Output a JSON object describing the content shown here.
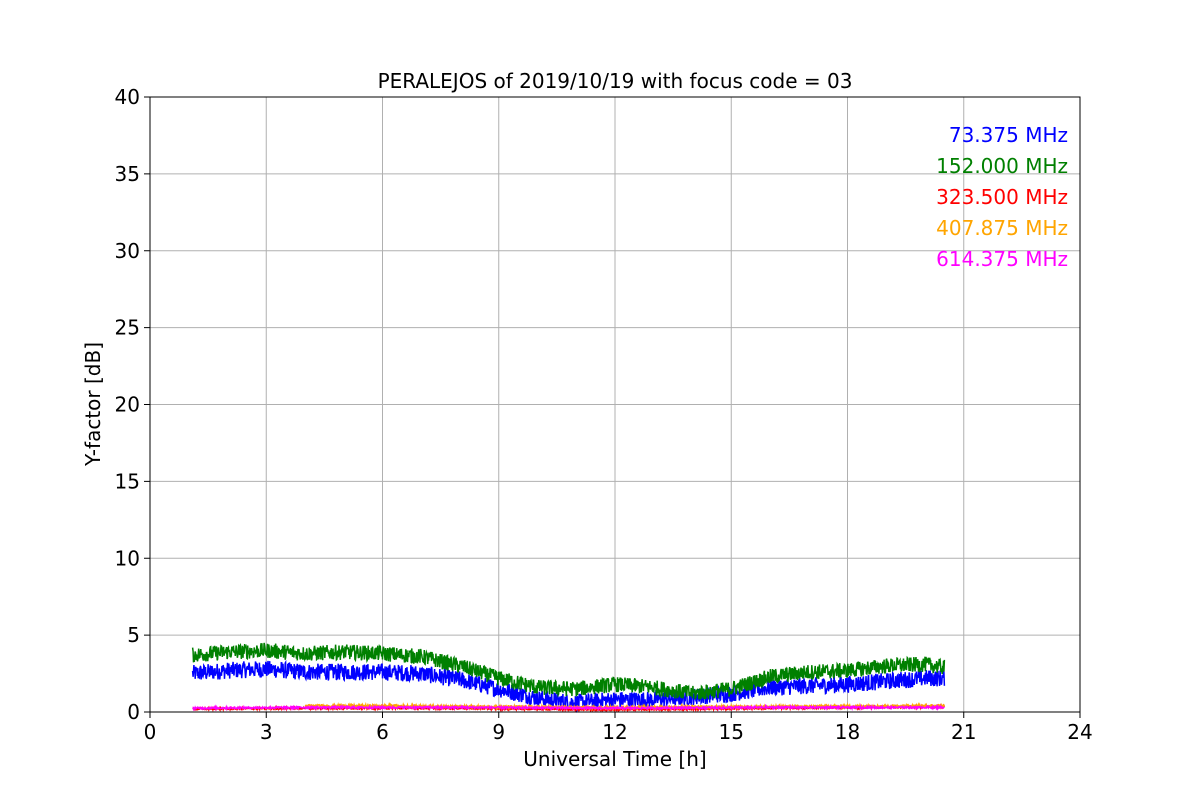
{
  "chart_data": {
    "type": "line",
    "title": "PERALEJOS of 2019/10/19 with focus code = 03",
    "xlabel": "Universal Time [h]",
    "ylabel": "Y-factor [dB]",
    "xlim": [
      0,
      24
    ],
    "ylim": [
      0,
      40
    ],
    "xticks": [
      "0",
      "3",
      "6",
      "9",
      "12",
      "15",
      "18",
      "21",
      "24"
    ],
    "yticks": [
      "0",
      "5",
      "10",
      "15",
      "20",
      "25",
      "30",
      "35",
      "40"
    ],
    "grid": true,
    "legend_position": "top-right",
    "series": [
      {
        "name": "73.375 MHz",
        "color": "#0000ff",
        "noise": 0.55,
        "x": [
          1.1,
          2,
          3,
          4,
          5,
          6,
          7,
          8,
          9,
          10,
          11,
          12,
          13,
          14,
          15,
          16,
          17,
          18,
          19,
          20,
          20.5
        ],
        "y": [
          2.5,
          2.7,
          2.8,
          2.6,
          2.6,
          2.6,
          2.5,
          2.1,
          1.5,
          0.9,
          0.6,
          0.8,
          0.8,
          1.0,
          1.2,
          1.6,
          1.7,
          1.8,
          2.0,
          2.2,
          2.2
        ]
      },
      {
        "name": "152.000 MHz",
        "color": "#008000",
        "noise": 0.5,
        "x": [
          1.1,
          2,
          3,
          4,
          5,
          6,
          7,
          8,
          9,
          10,
          11,
          12,
          13,
          14,
          15,
          16,
          17,
          18,
          19,
          20,
          20.5
        ],
        "y": [
          3.7,
          3.9,
          4.0,
          3.8,
          3.9,
          3.8,
          3.6,
          3.0,
          2.2,
          1.6,
          1.5,
          1.8,
          1.6,
          1.2,
          1.5,
          2.3,
          2.6,
          2.7,
          3.0,
          3.1,
          2.9
        ]
      },
      {
        "name": "323.500 MHz",
        "color": "#ff0000",
        "noise": 0.06,
        "x": [
          1.1,
          4,
          8,
          12,
          16,
          20.5
        ],
        "y": [
          0.2,
          0.25,
          0.25,
          0.15,
          0.25,
          0.35
        ]
      },
      {
        "name": "407.875 MHz",
        "color": "#ffa500",
        "noise": 0.08,
        "x": [
          4,
          6,
          8,
          12,
          16,
          20.5
        ],
        "y": [
          0.4,
          0.4,
          0.35,
          0.3,
          0.35,
          0.4
        ]
      },
      {
        "name": "614.375 MHz",
        "color": "#ff00ff",
        "noise": 0.06,
        "x": [
          1.1,
          4,
          8,
          12,
          16,
          20.5
        ],
        "y": [
          0.25,
          0.3,
          0.3,
          0.25,
          0.3,
          0.3
        ]
      }
    ]
  }
}
